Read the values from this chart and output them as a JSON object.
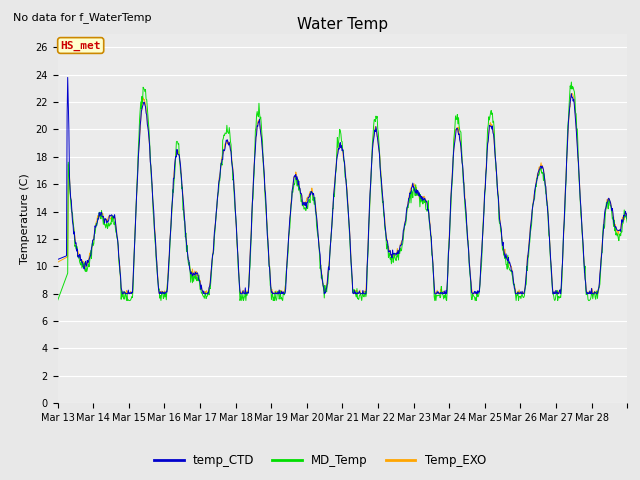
{
  "title": "Water Temp",
  "subtitle": "No data for f_WaterTemp",
  "ylabel": "Temperature (C)",
  "annotation": "HS_met",
  "ylim": [
    0,
    27
  ],
  "yticks": [
    0,
    2,
    4,
    6,
    8,
    10,
    12,
    14,
    16,
    18,
    20,
    22,
    24,
    26
  ],
  "x_labels": [
    "Mar 13",
    "Mar 14",
    "Mar 15",
    "Mar 16",
    "Mar 17",
    "Mar 18",
    "Mar 19",
    "Mar 20",
    "Mar 21",
    "Mar 22",
    "Mar 23",
    "Mar 24",
    "Mar 25",
    "Mar 26",
    "Mar 27",
    "Mar 28"
  ],
  "legend": [
    {
      "label": "temp_CTD",
      "color": "#0000cc"
    },
    {
      "label": "MD_Temp",
      "color": "#00dd00"
    },
    {
      "label": "Temp_EXO",
      "color": "#ffa500"
    }
  ],
  "bg_color": "#e8e8e8",
  "plot_bg": "#ebebeb",
  "annotation_color": "#cc0000",
  "annotation_bg": "#ffffcc",
  "annotation_border": "#cc8800"
}
